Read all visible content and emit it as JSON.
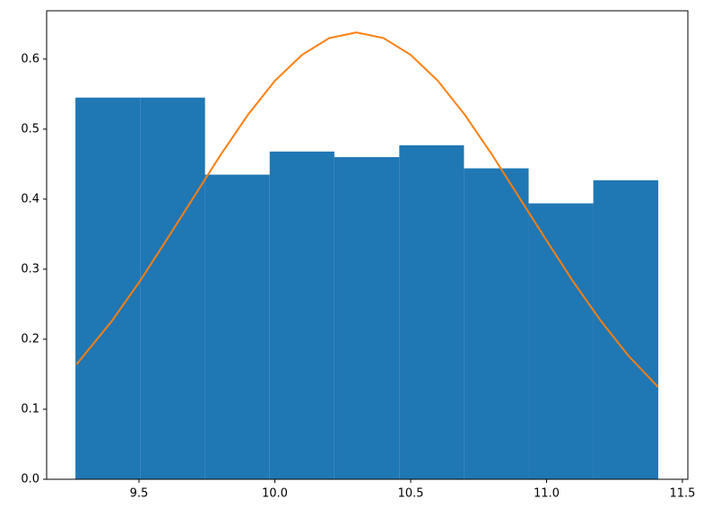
{
  "chart_data": {
    "type": "histogram",
    "bins": [
      9.266,
      9.504,
      9.743,
      9.981,
      10.219,
      10.458,
      10.696,
      10.934,
      11.172,
      11.411
    ],
    "values": [
      0.545,
      0.545,
      0.435,
      0.468,
      0.46,
      0.477,
      0.444,
      0.394,
      0.427
    ],
    "color": "#1f77b4",
    "curve": {
      "type": "line",
      "color": "#ff7f0e",
      "x": [
        9.27,
        9.4,
        9.5,
        9.6,
        9.7,
        9.8,
        9.9,
        10.0,
        10.1,
        10.2,
        10.3,
        10.4,
        10.5,
        10.6,
        10.7,
        10.8,
        10.9,
        11.0,
        11.1,
        11.2,
        11.3,
        11.41
      ],
      "values": [
        0.164,
        0.226,
        0.281,
        0.341,
        0.402,
        0.463,
        0.52,
        0.569,
        0.606,
        0.63,
        0.638,
        0.63,
        0.606,
        0.569,
        0.52,
        0.463,
        0.402,
        0.341,
        0.281,
        0.226,
        0.177,
        0.132
      ]
    },
    "xlim": [
      9.16,
      11.52
    ],
    "ylim": [
      0,
      0.669
    ],
    "xticks": [
      9.5,
      {
        "value": 10,
        "label": "10.0"
      },
      10.5,
      {
        "value": 11,
        "label": "11.0"
      },
      11.5
    ],
    "yticks": [
      {
        "value": 0,
        "label": "0.0"
      },
      0.1,
      0.2,
      0.3,
      0.4,
      0.5,
      0.6
    ],
    "grid": false
  }
}
